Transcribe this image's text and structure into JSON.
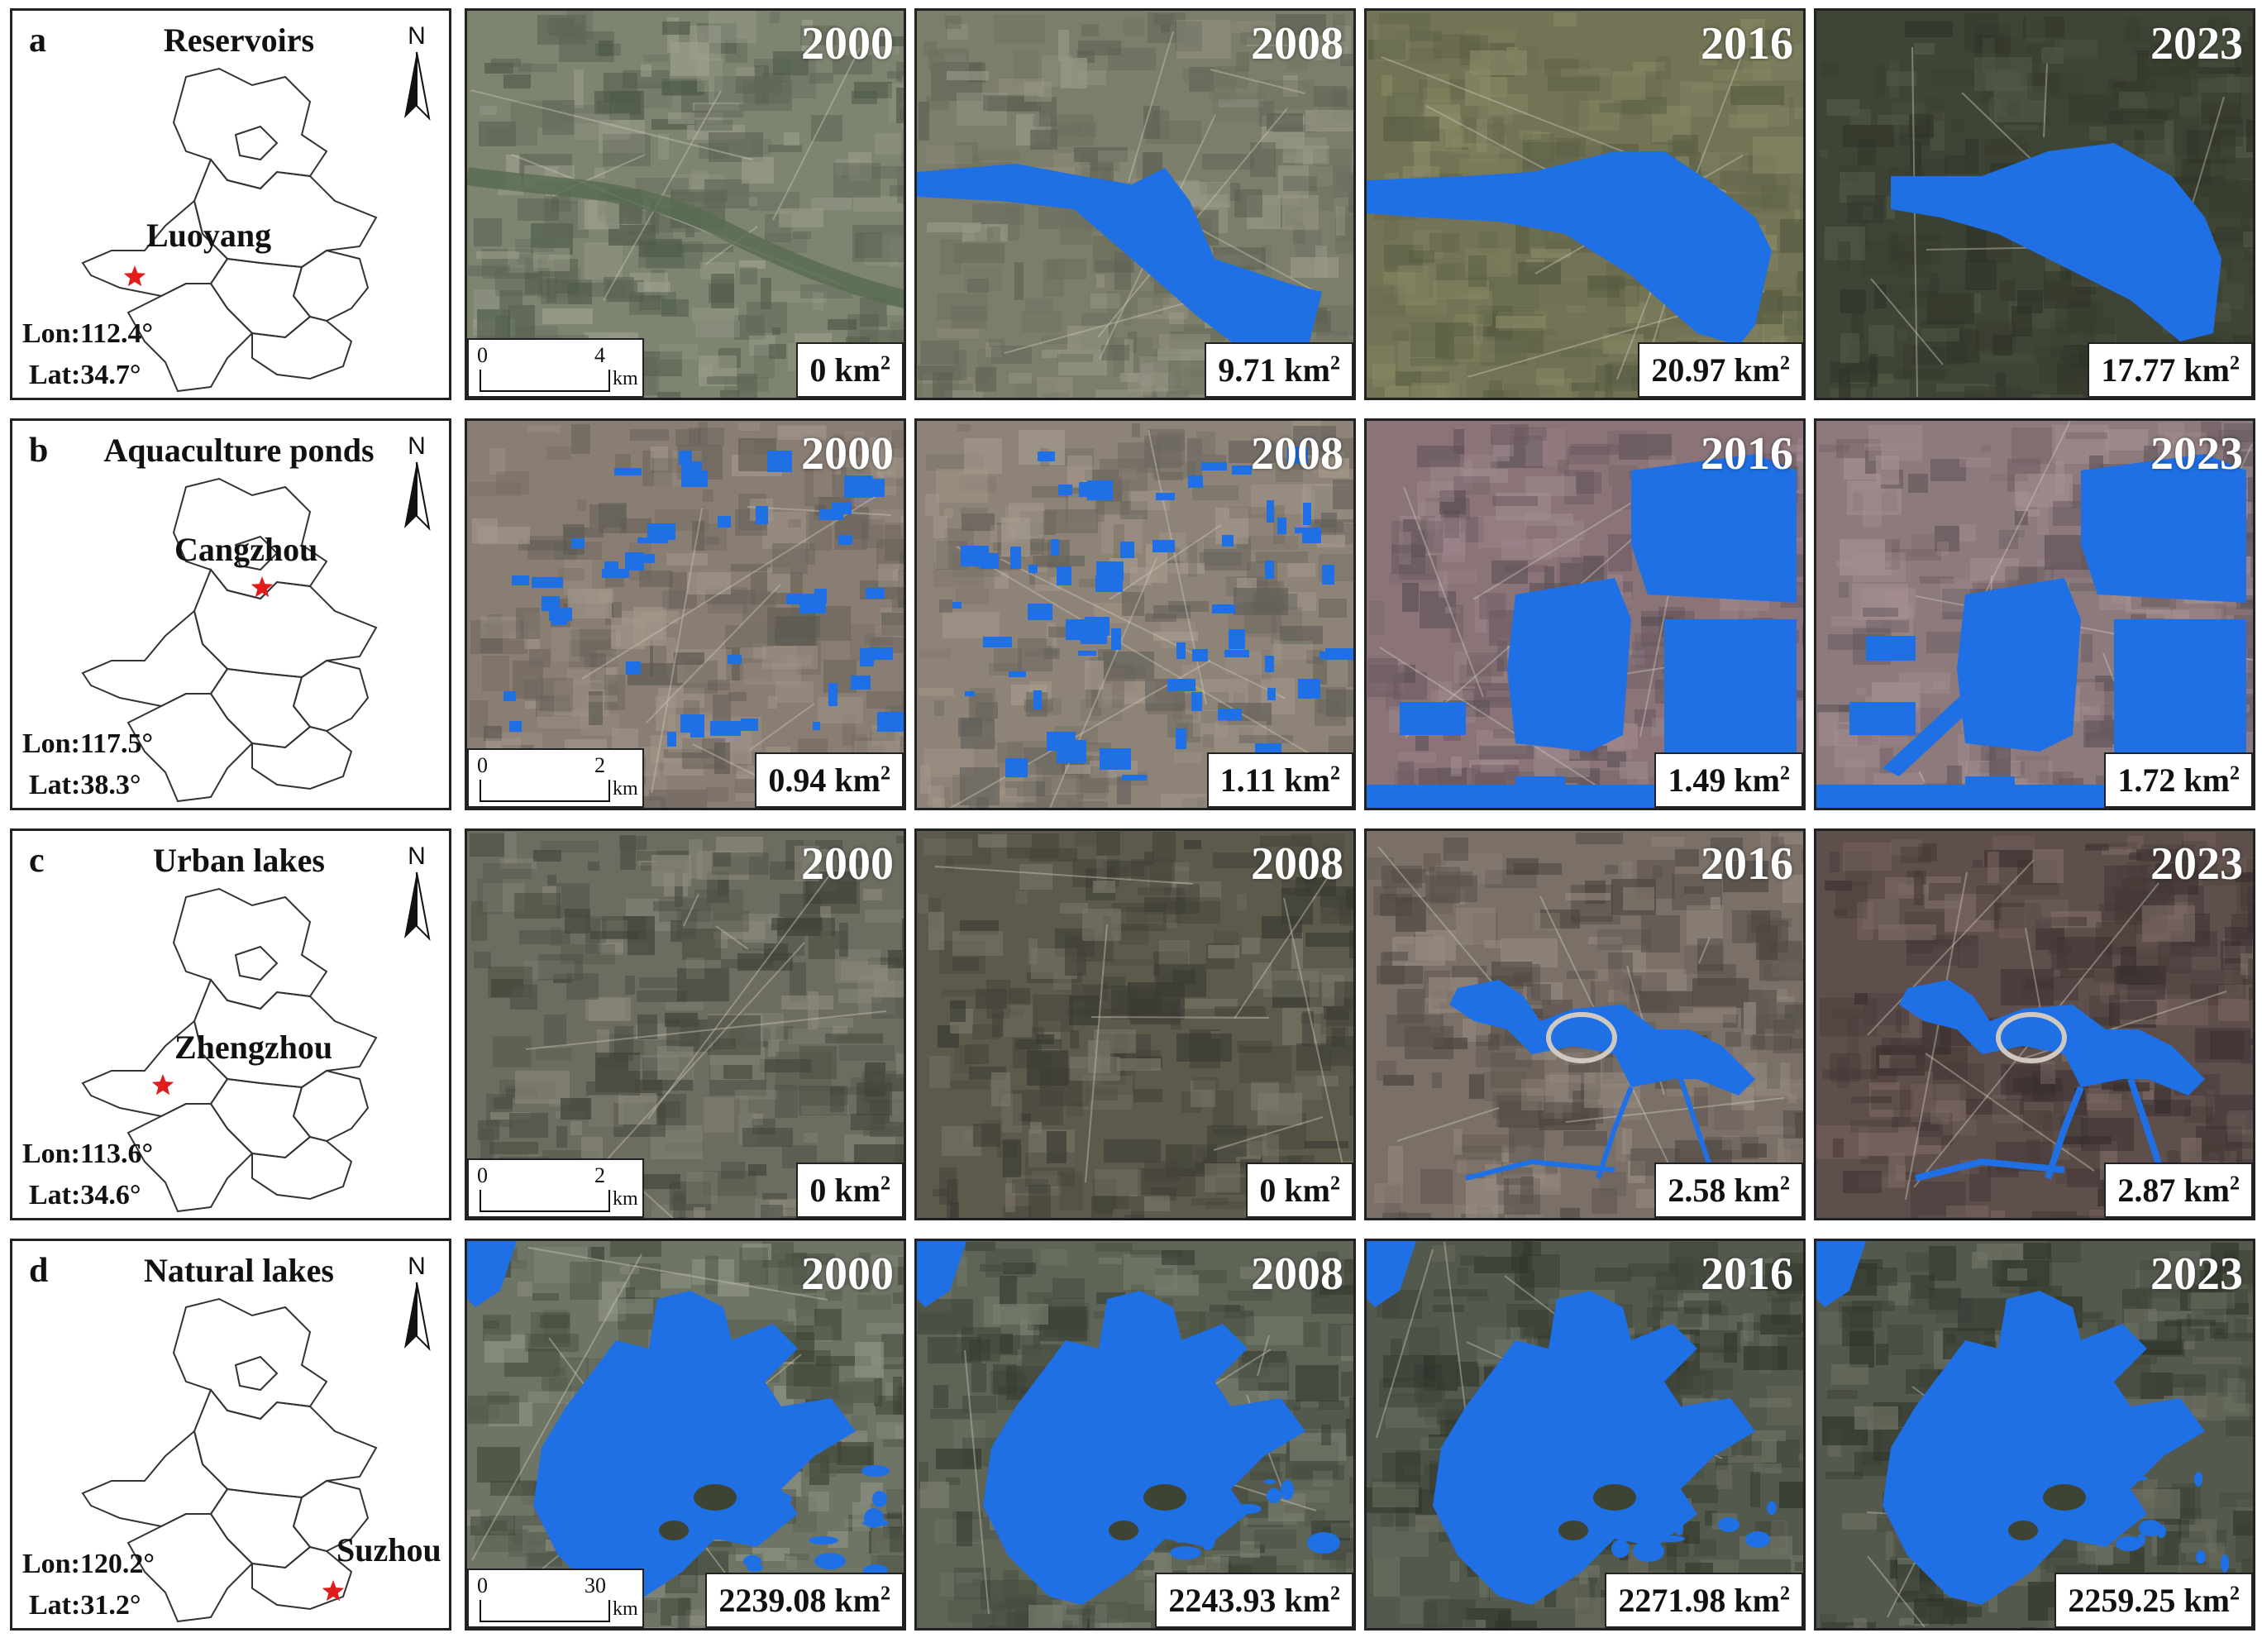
{
  "colors": {
    "water": "#1f6fe5",
    "star": "#e01c1c",
    "border": "#222222"
  },
  "rows": [
    {
      "letter": "a",
      "title": "Reservoirs",
      "city": "Luoyang",
      "lon": "Lon:112.4°",
      "lat": "Lat:34.7°",
      "scale": {
        "zero": "0",
        "max": "4",
        "unit": "km"
      },
      "unit_base": "km",
      "unit_exp": "2",
      "years": [
        {
          "year": "2000",
          "area": "0"
        },
        {
          "year": "2008",
          "area": "9.71"
        },
        {
          "year": "2016",
          "area": "20.97"
        },
        {
          "year": "2023",
          "area": "17.77"
        }
      ]
    },
    {
      "letter": "b",
      "title": "Aquaculture ponds",
      "city": "Cangzhou",
      "lon": "Lon:117.5°",
      "lat": "Lat:38.3°",
      "scale": {
        "zero": "0",
        "max": "2",
        "unit": "km"
      },
      "unit_base": "km",
      "unit_exp": "2",
      "years": [
        {
          "year": "2000",
          "area": "0.94"
        },
        {
          "year": "2008",
          "area": "1.11"
        },
        {
          "year": "2016",
          "area": "1.49"
        },
        {
          "year": "2023",
          "area": "1.72"
        }
      ]
    },
    {
      "letter": "c",
      "title": "Urban lakes",
      "city": "Zhengzhou",
      "lon": "Lon:113.6°",
      "lat": "Lat:34.6°",
      "scale": {
        "zero": "0",
        "max": "2",
        "unit": "km"
      },
      "unit_base": "km",
      "unit_exp": "2",
      "years": [
        {
          "year": "2000",
          "area": "0"
        },
        {
          "year": "2008",
          "area": "0"
        },
        {
          "year": "2016",
          "area": "2.58"
        },
        {
          "year": "2023",
          "area": "2.87"
        }
      ]
    },
    {
      "letter": "d",
      "title": "Natural lakes",
      "city": "Suzhou",
      "lon": "Lon:120.2°",
      "lat": "Lat:31.2°",
      "scale": {
        "zero": "0",
        "max": "30",
        "unit": "km"
      },
      "unit_base": "km",
      "unit_exp": "2",
      "years": [
        {
          "year": "2000",
          "area": "2239.08"
        },
        {
          "year": "2008",
          "area": "2243.93"
        },
        {
          "year": "2016",
          "area": "2271.98"
        },
        {
          "year": "2023",
          "area": "2259.25"
        }
      ]
    }
  ],
  "north_label": "N"
}
